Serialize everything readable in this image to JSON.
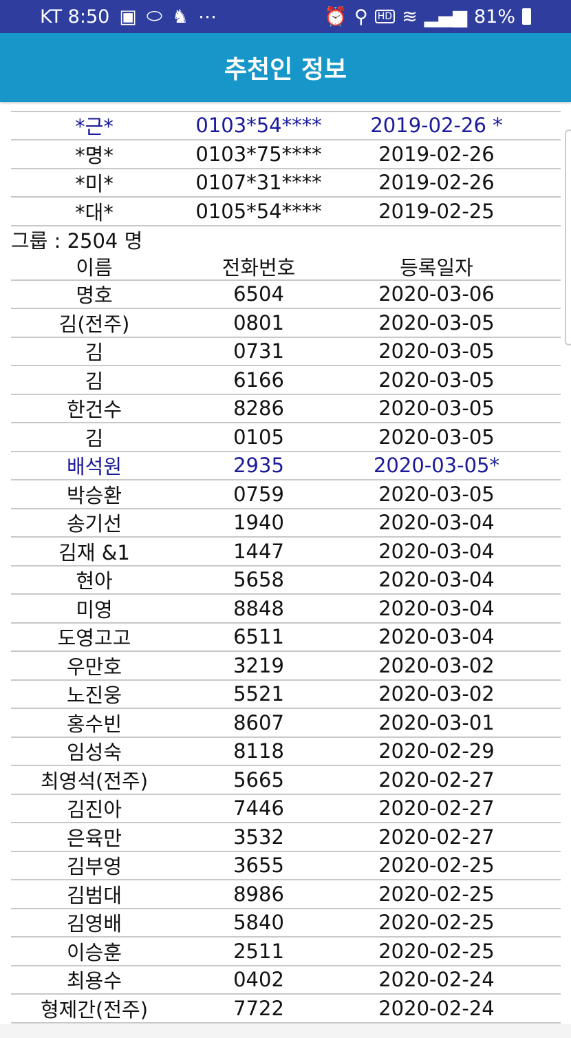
{
  "status_bar": {
    "carrier_time": "KT 8:50",
    "battery": "81%",
    "icons": [
      "image-icon",
      "pill-icon",
      "app-icon",
      "more-icon",
      "alarm-icon",
      "location-icon",
      "hd-icon",
      "wifi-icon",
      "signal-icon",
      "battery-icon"
    ]
  },
  "header": {
    "title": "추천인 정보"
  },
  "colors": {
    "highlight": "#1a1a9a",
    "appbar": "#1797c9",
    "status": "#2f3e9e"
  },
  "recommender_rows": [
    {
      "name": "*근*",
      "phone": "0103*54****",
      "date": "2019-02-26 *",
      "highlight": true
    },
    {
      "name": "*명*",
      "phone": "0103*75****",
      "date": "2019-02-26"
    },
    {
      "name": "*미*",
      "phone": "0107*31****",
      "date": "2019-02-26"
    },
    {
      "name": "*대*",
      "phone": "0105*54****",
      "date": "2019-02-25"
    }
  ],
  "group": {
    "label": "그룹 : 2504 명",
    "columns": [
      "이름",
      "전화번호",
      "등록일자"
    ],
    "rows": [
      {
        "name": "명호",
        "phone": "6504",
        "date": "2020-03-06"
      },
      {
        "name": "김(전주)",
        "phone": "0801",
        "date": "2020-03-05"
      },
      {
        "name": "김",
        "phone": "0731",
        "date": "2020-03-05"
      },
      {
        "name": "김",
        "phone": "6166",
        "date": "2020-03-05"
      },
      {
        "name": "한건수",
        "phone": "8286",
        "date": "2020-03-05"
      },
      {
        "name": "김",
        "phone": "0105",
        "date": "2020-03-05"
      },
      {
        "name": "배석원",
        "phone": "2935",
        "date": "2020-03-05*",
        "highlight": true
      },
      {
        "name": "박승환",
        "phone": "0759",
        "date": "2020-03-05"
      },
      {
        "name": "송기선",
        "phone": "1940",
        "date": "2020-03-04"
      },
      {
        "name": "김재 &1",
        "phone": "1447",
        "date": "2020-03-04"
      },
      {
        "name": "현아",
        "phone": "5658",
        "date": "2020-03-04"
      },
      {
        "name": "미영",
        "phone": "8848",
        "date": "2020-03-04"
      },
      {
        "name": "도영고고",
        "phone": "6511",
        "date": "2020-03-04"
      },
      {
        "name": "우만호",
        "phone": "3219",
        "date": "2020-03-02"
      },
      {
        "name": "노진웅",
        "phone": "5521",
        "date": "2020-03-02"
      },
      {
        "name": "홍수빈",
        "phone": "8607",
        "date": "2020-03-01"
      },
      {
        "name": "임성숙",
        "phone": "8118",
        "date": "2020-02-29"
      },
      {
        "name": "최영석(전주)",
        "phone": "5665",
        "date": "2020-02-27"
      },
      {
        "name": "김진아",
        "phone": "7446",
        "date": "2020-02-27"
      },
      {
        "name": "은육만",
        "phone": "3532",
        "date": "2020-02-27"
      },
      {
        "name": "김부영",
        "phone": "3655",
        "date": "2020-02-25"
      },
      {
        "name": "김범대",
        "phone": "8986",
        "date": "2020-02-25"
      },
      {
        "name": "김영배",
        "phone": "5840",
        "date": "2020-02-25"
      },
      {
        "name": "이승훈",
        "phone": "2511",
        "date": "2020-02-25"
      },
      {
        "name": "최용수",
        "phone": "0402",
        "date": "2020-02-24"
      },
      {
        "name": "형제간(전주)",
        "phone": "7722",
        "date": "2020-02-24"
      }
    ]
  }
}
